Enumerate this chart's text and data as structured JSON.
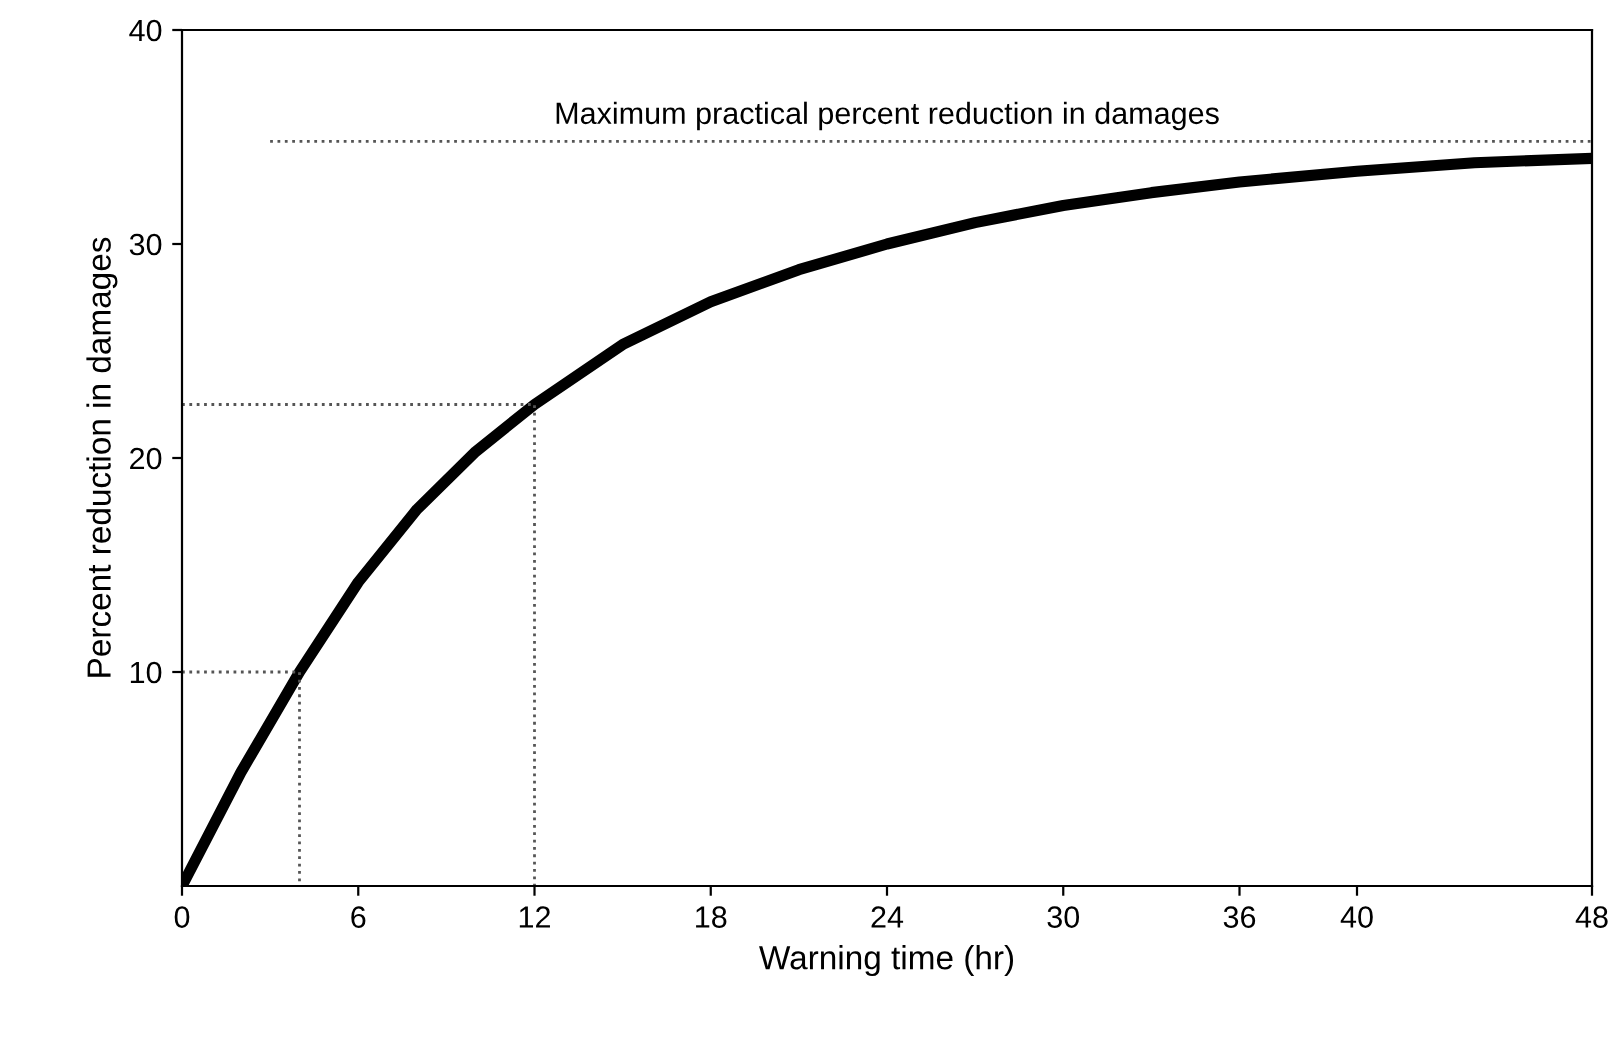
{
  "chart_data": {
    "type": "line",
    "xlabel": "Warning time (hr)",
    "ylabel": "Percent reduction in damages",
    "xlim": [
      0,
      48
    ],
    "ylim": [
      0,
      40
    ],
    "xticks": [
      0,
      6,
      12,
      18,
      24,
      30,
      36,
      40,
      48
    ],
    "yticks": [
      10,
      20,
      30,
      40
    ],
    "grid": false,
    "legend": false,
    "marker": "none",
    "series": [
      {
        "color": "#000000",
        "line_style": "solid",
        "x": [
          0,
          2,
          4,
          6,
          8,
          10,
          12,
          15,
          18,
          21,
          24,
          27,
          30,
          33,
          36,
          40,
          44,
          48
        ],
        "values": [
          0,
          5.3,
          10,
          14.2,
          17.6,
          20.3,
          22.5,
          25.3,
          27.3,
          28.8,
          30.0,
          31.0,
          31.8,
          32.4,
          32.9,
          33.4,
          33.8,
          34.0
        ]
      },
      {
        "color": "#555555",
        "line_style": "dotted",
        "x": [
          0,
          4,
          4
        ],
        "values": [
          10,
          10,
          0
        ]
      },
      {
        "color": "#555555",
        "line_style": "dotted",
        "x": [
          0,
          12,
          12
        ],
        "values": [
          22.5,
          22.5,
          0
        ]
      },
      {
        "color": "#555555",
        "line_style": "dotted",
        "x": [
          3,
          48
        ],
        "values": [
          34.8,
          34.8
        ]
      }
    ],
    "annotations": [
      {
        "text": "Maximum practical percent reduction in damages",
        "x": 24,
        "y": 34.8
      }
    ]
  }
}
